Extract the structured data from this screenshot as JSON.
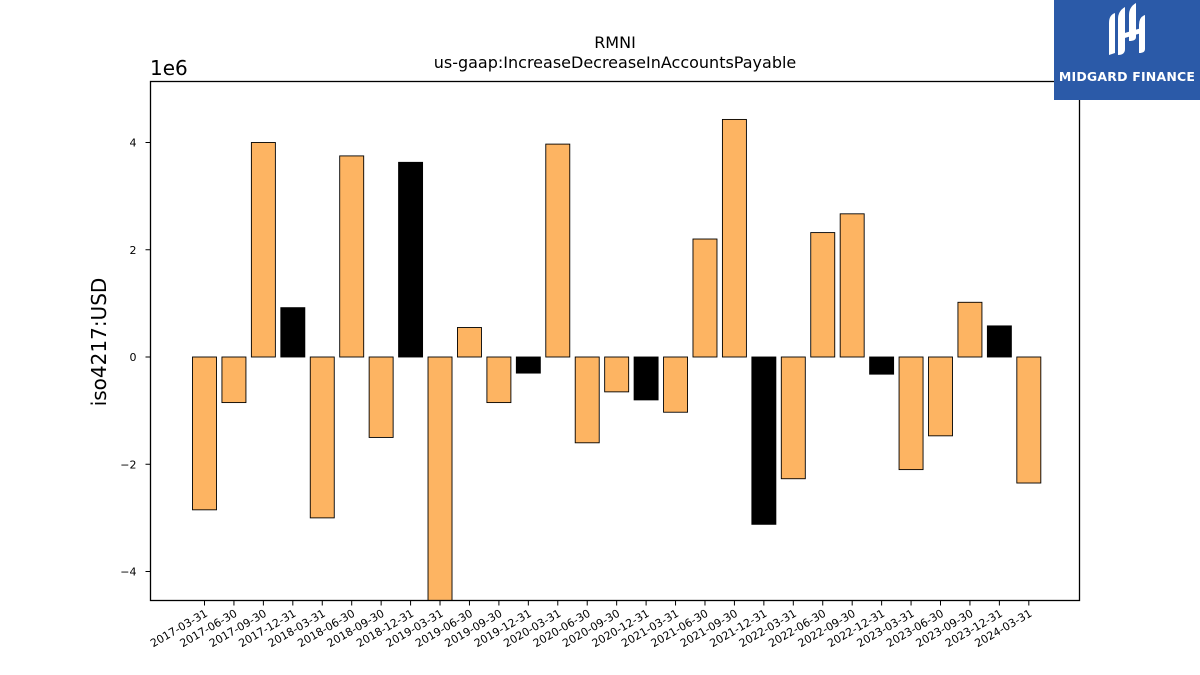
{
  "chart_data": {
    "type": "bar",
    "title": "RMNI",
    "subtitle": "us-gaap:IncreaseDecreaseInAccountsPayable",
    "ylabel": "iso4217:USD",
    "xlabel": "",
    "y_multiplier_label": "1e6",
    "ylim": [
      -4.5,
      5.1
    ],
    "yticks": [
      -4,
      -2,
      0,
      2,
      4
    ],
    "ytick_labels": [
      "−4",
      "−2",
      "0",
      "2",
      "4"
    ],
    "categories": [
      "2017-03-31",
      "2017-06-30",
      "2017-09-30",
      "2017-12-31",
      "2018-03-31",
      "2018-06-30",
      "2018-09-30",
      "2018-12-31",
      "2019-03-31",
      "2019-06-30",
      "2019-09-30",
      "2019-12-31",
      "2020-03-31",
      "2020-06-30",
      "2020-09-30",
      "2020-12-31",
      "2021-03-31",
      "2021-06-30",
      "2021-09-30",
      "2021-12-31",
      "2022-03-31",
      "2022-06-30",
      "2022-09-30",
      "2022-12-31",
      "2023-03-31",
      "2023-06-30",
      "2023-09-30",
      "2023-12-31",
      "2024-03-31"
    ],
    "values": [
      -2.85,
      -0.85,
      4.0,
      0.92,
      -3.0,
      3.75,
      -1.5,
      3.63,
      -4.7,
      0.55,
      -0.85,
      -0.3,
      3.97,
      -1.6,
      -0.65,
      -0.8,
      -1.03,
      2.2,
      4.43,
      -3.12,
      -2.27,
      2.32,
      2.67,
      -0.32,
      -2.1,
      -1.47,
      1.02,
      0.58,
      -2.35
    ],
    "bar_colors": [
      "#fdb462",
      "#fdb462",
      "#fdb462",
      "#000000",
      "#fdb462",
      "#fdb462",
      "#fdb462",
      "#000000",
      "#fdb462",
      "#fdb462",
      "#fdb462",
      "#000000",
      "#fdb462",
      "#fdb462",
      "#fdb462",
      "#000000",
      "#fdb462",
      "#fdb462",
      "#fdb462",
      "#000000",
      "#fdb462",
      "#fdb462",
      "#fdb462",
      "#000000",
      "#fdb462",
      "#fdb462",
      "#fdb462",
      "#000000",
      "#fdb462"
    ],
    "grid": false,
    "legend": "none"
  },
  "logo": {
    "text": "MIDGARD FINANCE",
    "background": "#2b5aa8"
  }
}
